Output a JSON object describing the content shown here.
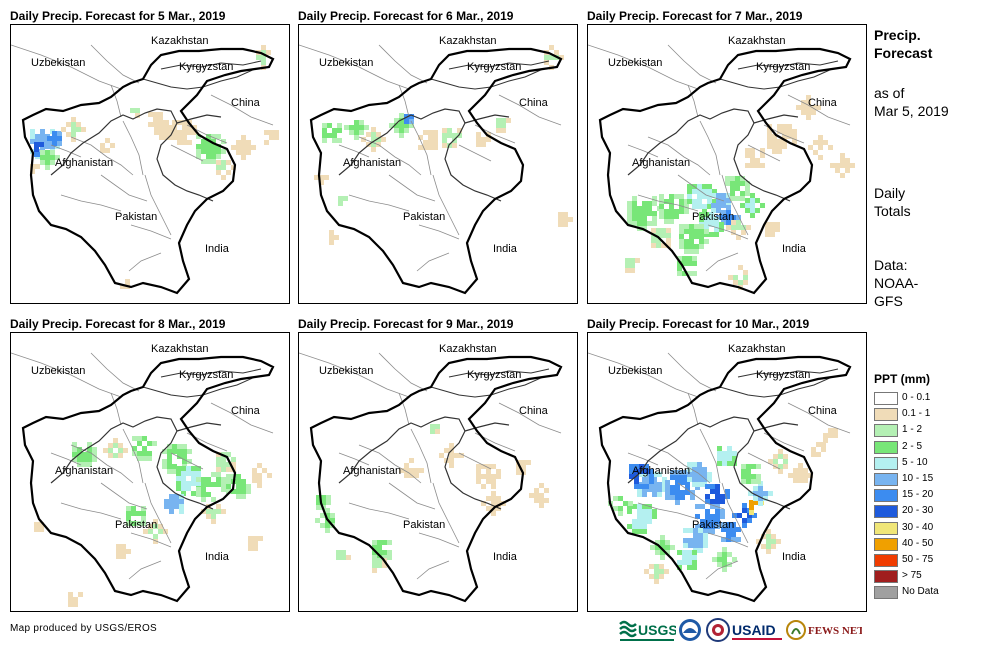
{
  "panels": [
    {
      "title": "Daily Precip. Forecast for 5 Mar., 2019"
    },
    {
      "title": "Daily Precip. Forecast for 6 Mar., 2019"
    },
    {
      "title": "Daily Precip. Forecast for 7 Mar., 2019"
    },
    {
      "title": "Daily Precip. Forecast for 8 Mar., 2019"
    },
    {
      "title": "Daily Precip. Forecast for 9 Mar., 2019"
    },
    {
      "title": "Daily Precip. Forecast for 10 Mar., 2019"
    }
  ],
  "map_labels": {
    "kazakhstan": "Kazakhstan",
    "uzbekistan": "Uzbekistan",
    "kyrgyzstan": "Kyrgyzstan",
    "china": "China",
    "afghanistan": "Afghanistan",
    "pakistan": "Pakistan",
    "india": "India"
  },
  "sidebar": {
    "title_line1": "Precip.",
    "title_line2": "Forecast",
    "asof_line1": "as of",
    "asof_line2": "Mar 5, 2019",
    "totals_line1": "Daily",
    "totals_line2": "Totals",
    "data_line1": "Data:",
    "data_line2": "NOAA-",
    "data_line3": "GFS"
  },
  "legend": {
    "title": "PPT (mm)",
    "items": [
      {
        "label": "0 - 0.1",
        "color": "#ffffff"
      },
      {
        "label": "0.1 - 1",
        "color": "#f0dcb8"
      },
      {
        "label": "1 - 2",
        "color": "#b4f0b4"
      },
      {
        "label": "2 - 5",
        "color": "#78e678"
      },
      {
        "label": "5 - 10",
        "color": "#b4f0f0"
      },
      {
        "label": "10 - 15",
        "color": "#78b4f0"
      },
      {
        "label": "15 - 20",
        "color": "#3c8cf0"
      },
      {
        "label": "20 - 30",
        "color": "#1e5adc"
      },
      {
        "label": "30 - 40",
        "color": "#f0e678"
      },
      {
        "label": "40 - 50",
        "color": "#f0a000"
      },
      {
        "label": "50 - 75",
        "color": "#f03c00"
      },
      {
        "label": "> 75",
        "color": "#a01e1e"
      },
      {
        "label": "No Data",
        "color": "#a0a0a0"
      }
    ]
  },
  "credit": "Map produced by USGS/EROS",
  "logos": {
    "usgs": "USGS",
    "usaid": "USAID",
    "fews": "FEWS NET"
  }
}
